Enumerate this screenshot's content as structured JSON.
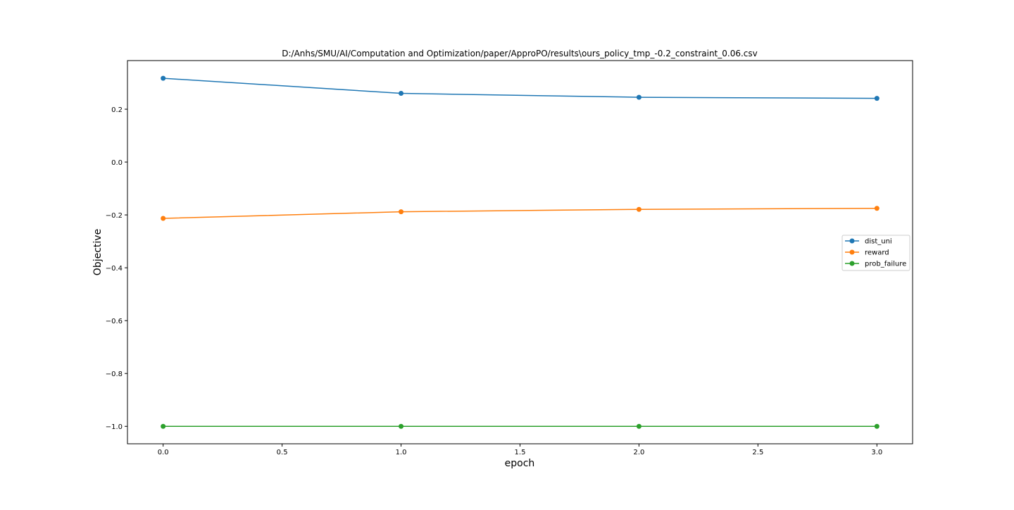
{
  "chart_data": {
    "type": "line",
    "title": "D:/Anhs/SMU/AI/Computation and Optimization/paper/ApproPO/results\\ours_policy_tmp_-0.2_constraint_0.06.csv",
    "xlabel": "epoch",
    "ylabel": "Objective",
    "x": [
      0,
      1,
      2,
      3
    ],
    "xlim": [
      -0.15,
      3.15
    ],
    "ylim": [
      -1.066,
      0.384
    ],
    "xticks": [
      0.0,
      0.5,
      1.0,
      1.5,
      2.0,
      2.5,
      3.0
    ],
    "xtick_labels": [
      "0.0",
      "0.5",
      "1.0",
      "1.5",
      "2.0",
      "2.5",
      "3.0"
    ],
    "yticks": [
      0.2,
      0.0,
      -0.2,
      -0.4,
      -0.6,
      -0.8,
      -1.0
    ],
    "ytick_labels": [
      "0.2",
      "0.0",
      "−0.2",
      "−0.4",
      "−0.6",
      "−0.8",
      "−1.0"
    ],
    "grid": false,
    "legend_position": "center-right",
    "series": [
      {
        "name": "dist_uni",
        "color": "#1f77b4",
        "values": [
          0.317,
          0.26,
          0.245,
          0.241
        ]
      },
      {
        "name": "reward",
        "color": "#ff7f0e",
        "values": [
          -0.213,
          -0.188,
          -0.179,
          -0.175
        ]
      },
      {
        "name": "prob_failure",
        "color": "#2ca02c",
        "values": [
          -1.0,
          -1.0,
          -1.0,
          -1.0
        ]
      }
    ]
  }
}
